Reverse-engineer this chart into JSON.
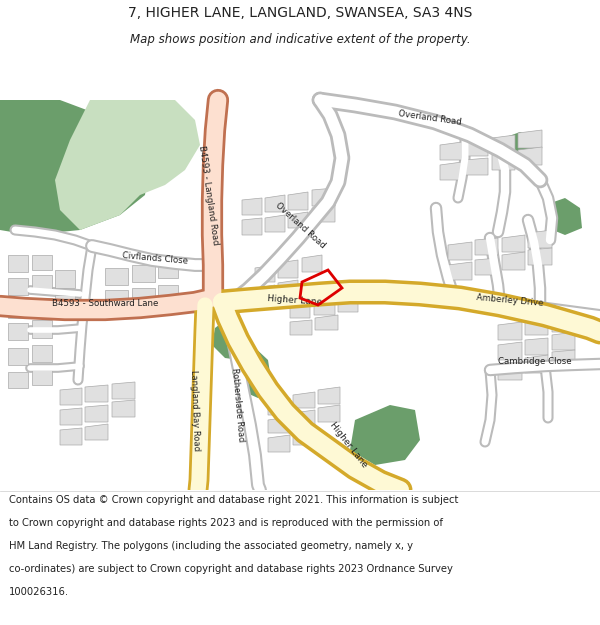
{
  "title": "7, HIGHER LANE, LANGLAND, SWANSEA, SA3 4NS",
  "subtitle": "Map shows position and indicative extent of the property.",
  "footer_lines": [
    "Contains OS data © Crown copyright and database right 2021. This information is subject",
    "to Crown copyright and database rights 2023 and is reproduced with the permission of",
    "HM Land Registry. The polygons (including the associated geometry, namely x, y",
    "co-ordinates) are subject to Crown copyright and database rights 2023 Ordnance Survey",
    "100026316."
  ],
  "bg_color": "#ffffff",
  "map_bg": "#ffffff",
  "road_yellow": "#f7e083",
  "road_yellow_fill": "#fef9d5",
  "road_yellow_border": "#d4a92a",
  "road_salmon": "#f0b090",
  "road_salmon_fill": "#fde0d0",
  "road_salmon_border": "#c07050",
  "road_white": "#ffffff",
  "road_white_border": "#bbbbbb",
  "green_dark": "#6b9e6b",
  "green_light": "#c8dfc0",
  "building_fill": "#e0e0e0",
  "building_stroke": "#aaaaaa",
  "plot_color": "#dd0000",
  "text_color": "#222222",
  "title_fontsize": 10,
  "subtitle_fontsize": 8.5,
  "footer_fontsize": 7.2,
  "label_fontsize": 6.5
}
